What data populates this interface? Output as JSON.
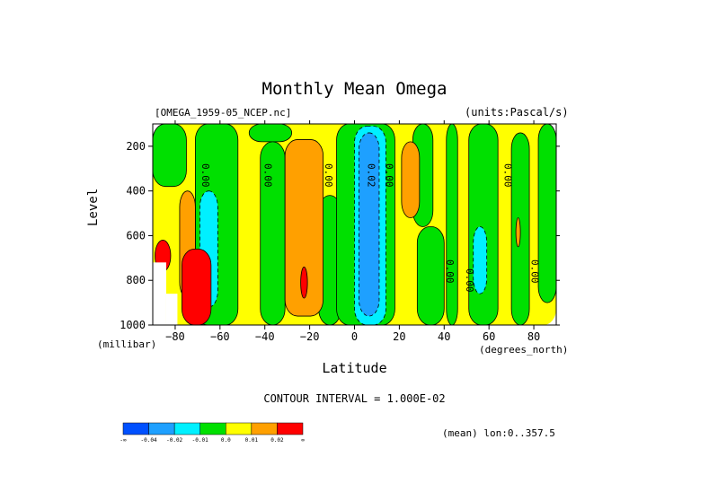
{
  "chart_data": {
    "type": "heatmap",
    "subtype": "filled-contour latitude-pressure cross section",
    "title": "Monthly Mean Omega",
    "dataset": "[OMEGA_1959-05_NCEP.nc]",
    "units": "(units:Pascal/s)",
    "xlabel": "Latitude",
    "xunits": "(degrees_north)",
    "ylabel": "Level",
    "yunits": "(millibar)",
    "xlim": [
      -90,
      90
    ],
    "ylim": [
      1000,
      100
    ],
    "y_reversed": true,
    "xticks": [
      -80,
      -60,
      -40,
      -20,
      0,
      20,
      40,
      60,
      80
    ],
    "yticks": [
      200,
      400,
      600,
      800,
      1000
    ],
    "contour_interval_text": "CONTOUR INTERVAL = 1.000E-02",
    "mean_note": "(mean) lon:0..357.5",
    "colorbar": {
      "colors": [
        "#0050ff",
        "#1ea0ff",
        "#00f0ff",
        "#00e000",
        "#ffff00",
        "#ffa000",
        "#ff0000"
      ],
      "labels": [
        "-∞",
        "-0.04",
        "-0.02",
        "-0.01",
        "0.0",
        "0.01",
        "0.02",
        "∞"
      ]
    },
    "contour_labels": [
      {
        "text": "0.00",
        "x": -68,
        "y": 330
      },
      {
        "text": "0.00",
        "x": -40,
        "y": 330
      },
      {
        "text": "0.00",
        "x": -13,
        "y": 330
      },
      {
        "text": "0.02",
        "x": 6,
        "y": 330
      },
      {
        "text": "0.00",
        "x": 14,
        "y": 330
      },
      {
        "text": "0.00",
        "x": 41,
        "y": 760
      },
      {
        "text": "0.00",
        "x": 50,
        "y": 800
      },
      {
        "text": "0.00",
        "x": 67,
        "y": 330
      },
      {
        "text": "0.00",
        "x": 79,
        "y": 760
      }
    ],
    "regions": [
      {
        "cls": 4,
        "x0": -90,
        "x1": 90,
        "p0": 100,
        "p1": 1000
      },
      {
        "cls": 3,
        "x0": -90,
        "x1": -75,
        "p0": 100,
        "p1": 380
      },
      {
        "cls": 3,
        "x0": -71,
        "x1": -52,
        "p0": 100,
        "p1": 1000
      },
      {
        "cls": 3,
        "x0": -47,
        "x1": -28,
        "p0": 100,
        "p1": 180
      },
      {
        "cls": 3,
        "x0": -42,
        "x1": -31,
        "p0": 180,
        "p1": 1000
      },
      {
        "cls": 3,
        "x0": -16,
        "x1": -6,
        "p0": 420,
        "p1": 1000
      },
      {
        "cls": 3,
        "x0": -8,
        "x1": 18,
        "p0": 100,
        "p1": 1000
      },
      {
        "cls": 3,
        "x0": 26,
        "x1": 35,
        "p0": 100,
        "p1": 560
      },
      {
        "cls": 3,
        "x0": 28,
        "x1": 40,
        "p0": 560,
        "p1": 1000
      },
      {
        "cls": 3,
        "x0": 41,
        "x1": 46,
        "p0": 100,
        "p1": 1000
      },
      {
        "cls": 3,
        "x0": 51,
        "x1": 64,
        "p0": 100,
        "p1": 1000
      },
      {
        "cls": 3,
        "x0": 70,
        "x1": 78,
        "p0": 140,
        "p1": 1000
      },
      {
        "cls": 3,
        "x0": 82,
        "x1": 90,
        "p0": 100,
        "p1": 900
      },
      {
        "cls": 5,
        "x0": -78,
        "x1": -71,
        "p0": 400,
        "p1": 880
      },
      {
        "cls": 5,
        "x0": -31,
        "x1": -14,
        "p0": 170,
        "p1": 960
      },
      {
        "cls": 5,
        "x0": 21,
        "x1": 29,
        "p0": 180,
        "p1": 520
      },
      {
        "cls": 5,
        "x0": 72,
        "x1": 74,
        "p0": 520,
        "p1": 650
      },
      {
        "cls": 2,
        "x0": -69,
        "x1": -61,
        "p0": 400,
        "p1": 920
      },
      {
        "cls": 2,
        "x0": 0,
        "x1": 14,
        "p0": 110,
        "p1": 1000
      },
      {
        "cls": 2,
        "x0": 53,
        "x1": 59,
        "p0": 560,
        "p1": 860
      },
      {
        "cls": 1,
        "x0": 2,
        "x1": 11,
        "p0": 140,
        "p1": 960
      },
      {
        "cls": 6,
        "x0": -77,
        "x1": -64,
        "p0": 660,
        "p1": 1000
      },
      {
        "cls": 6,
        "x0": -89,
        "x1": -82,
        "p0": 620,
        "p1": 760
      },
      {
        "cls": 6,
        "x0": -24,
        "x1": -21,
        "p0": 740,
        "p1": 880
      }
    ],
    "masked_regions": [
      {
        "x0": -90,
        "x1": -84,
        "p0": 720,
        "p1": 1000
      },
      {
        "x0": -84,
        "x1": -79,
        "p0": 860,
        "p1": 1000
      }
    ]
  }
}
